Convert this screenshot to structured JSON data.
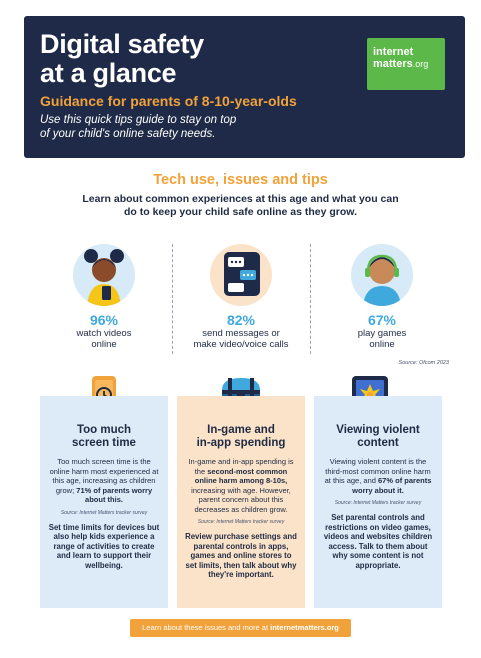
{
  "header": {
    "title_line1": "Digital safety",
    "title_line2": "at a glance",
    "subtitle": "Guidance for parents of 8-10-year-olds",
    "intro_line1": "Use this quick tips guide to stay on top",
    "intro_line2": "of your child's online safety needs.",
    "logo_line1": "internet",
    "logo_line2": "matters",
    "logo_suffix": ".org"
  },
  "section": {
    "title": "Tech use, issues and tips",
    "desc": "Learn about common experiences at this age and what you can do to keep your child safe online as they grow."
  },
  "stats": [
    {
      "percent": "96%",
      "label_line1": "watch videos",
      "label_line2": "online",
      "icon": "child-with-phone-icon"
    },
    {
      "percent": "82%",
      "label_line1": "send messages or",
      "label_line2": "make video/voice calls",
      "icon": "chat-phone-icon"
    },
    {
      "percent": "67%",
      "label_line1": "play games",
      "label_line2": "online",
      "icon": "child-with-headset-icon"
    }
  ],
  "stats_source": "Source: Ofcom 2023",
  "cards": [
    {
      "title_line1": "Too much",
      "title_line2": "screen time",
      "body_plain": "Too much screen time is the online harm most experienced at this age, increasing as children grow;",
      "body_bold": "71% of parents worry about this.",
      "source": "Source: Internet Matters tracker survey",
      "tip": "Set time limits for devices but also help kids experience a range of activities to create and learn to support their wellbeing.",
      "icon": "clock-phone-icon"
    },
    {
      "title_line1": "In-game and",
      "title_line2": "in-app spending",
      "body_a": "In-game and in-app spending is the",
      "body_bold": "second-most common online harm among 8-10s,",
      "body_b": "increasing with age. However, parent concern about this decreases as children grow.",
      "source": "Source: Internet Matters tracker survey",
      "tip": "Review purchase settings and parental controls in apps, games and online stores to set limits, then talk about why they're important.",
      "icon": "treasure-chest-icon"
    },
    {
      "title_line1": "Viewing violent",
      "title_line2": "content",
      "body_a": "Viewing violent content is the third-most common online harm at this age, and",
      "body_bold": "67% of parents worry about it.",
      "source": "Source: Internet Matters tracker survey",
      "tip": "Set parental controls and restrictions on video games, videos and websites children access. Talk to them about why some content is not appropriate.",
      "icon": "explosion-screen-icon"
    }
  ],
  "footer": {
    "text": "Learn about these issues and more at",
    "link": "internetmatters.org"
  }
}
